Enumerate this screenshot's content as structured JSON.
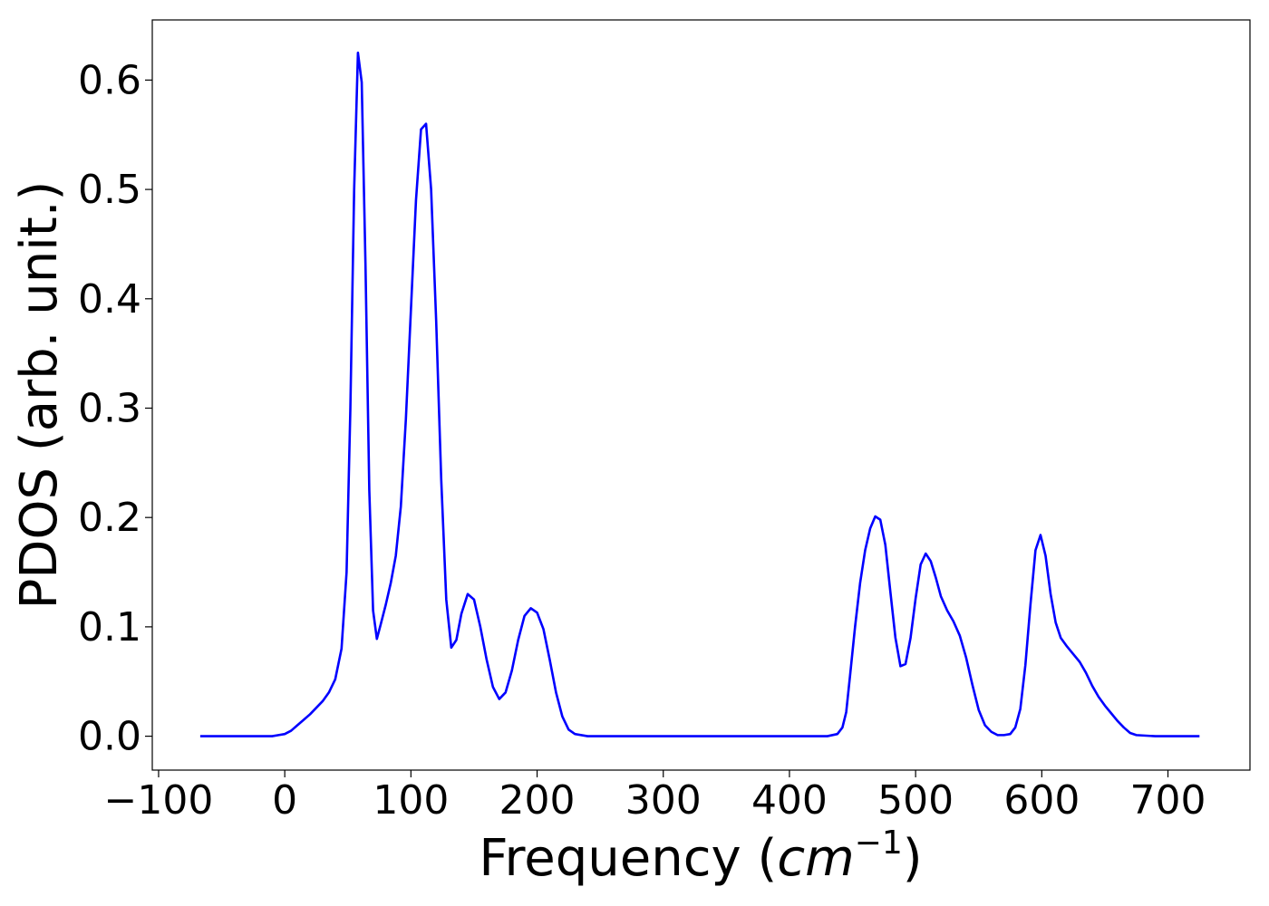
{
  "chart_data": {
    "type": "line",
    "title": "",
    "xlabel": "Frequency (",
    "xlabel_unit": "cm",
    "xlabel_sup": "−1",
    "xlabel_close": ")",
    "ylabel": "PDOS (arb. unit.)",
    "xlim": [
      -105,
      765
    ],
    "ylim": [
      -0.031,
      0.655
    ],
    "xticks": [
      -100,
      0,
      100,
      200,
      300,
      400,
      500,
      600,
      700
    ],
    "xtick_labels": [
      "−100",
      "0",
      "100",
      "200",
      "300",
      "400",
      "500",
      "600",
      "700"
    ],
    "yticks": [
      0.0,
      0.1,
      0.2,
      0.3,
      0.4,
      0.5,
      0.6
    ],
    "ytick_labels": [
      "0.0",
      "0.1",
      "0.2",
      "0.3",
      "0.4",
      "0.5",
      "0.6"
    ],
    "grid": false,
    "series": [
      {
        "color": "#0000ff",
        "x": [
          -67,
          -40,
          -20,
          -10,
          -5,
          0,
          5,
          10,
          15,
          20,
          25,
          30,
          35,
          40,
          45,
          49,
          52,
          55,
          58,
          61,
          64,
          67,
          70,
          73,
          76,
          80,
          84,
          88,
          92,
          96,
          100,
          104,
          108,
          112,
          116,
          120,
          124,
          128,
          132,
          136,
          140,
          145,
          150,
          155,
          160,
          165,
          170,
          175,
          180,
          185,
          190,
          195,
          200,
          205,
          210,
          215,
          220,
          225,
          230,
          240,
          260,
          300,
          350,
          400,
          430,
          438,
          442,
          445,
          448,
          452,
          456,
          460,
          464,
          468,
          472,
          476,
          480,
          484,
          488,
          492,
          496,
          500,
          504,
          508,
          512,
          516,
          520,
          525,
          530,
          535,
          540,
          545,
          550,
          555,
          560,
          565,
          570,
          575,
          579,
          583,
          587,
          591,
          595,
          599,
          603,
          607,
          611,
          615,
          620,
          625,
          630,
          635,
          640,
          645,
          650,
          655,
          660,
          665,
          670,
          675,
          690,
          725
        ],
        "y": [
          0.0,
          0.0,
          0.0,
          0.0,
          0.001,
          0.002,
          0.005,
          0.01,
          0.015,
          0.02,
          0.026,
          0.032,
          0.04,
          0.052,
          0.08,
          0.15,
          0.3,
          0.5,
          0.625,
          0.598,
          0.43,
          0.225,
          0.115,
          0.089,
          0.102,
          0.12,
          0.14,
          0.165,
          0.21,
          0.29,
          0.39,
          0.49,
          0.555,
          0.56,
          0.5,
          0.38,
          0.235,
          0.125,
          0.081,
          0.088,
          0.112,
          0.13,
          0.125,
          0.1,
          0.07,
          0.045,
          0.034,
          0.04,
          0.06,
          0.088,
          0.11,
          0.117,
          0.113,
          0.098,
          0.07,
          0.04,
          0.018,
          0.006,
          0.002,
          0.0,
          0.0,
          0.0,
          0.0,
          0.0,
          0.0,
          0.002,
          0.008,
          0.022,
          0.055,
          0.1,
          0.14,
          0.17,
          0.19,
          0.201,
          0.198,
          0.175,
          0.132,
          0.09,
          0.064,
          0.066,
          0.09,
          0.126,
          0.157,
          0.167,
          0.16,
          0.145,
          0.128,
          0.115,
          0.105,
          0.092,
          0.072,
          0.047,
          0.024,
          0.01,
          0.004,
          0.001,
          0.001,
          0.002,
          0.008,
          0.025,
          0.065,
          0.12,
          0.17,
          0.184,
          0.165,
          0.13,
          0.104,
          0.09,
          0.082,
          0.075,
          0.068,
          0.058,
          0.046,
          0.036,
          0.028,
          0.021,
          0.014,
          0.008,
          0.003,
          0.001,
          0.0,
          0.0
        ]
      }
    ]
  }
}
